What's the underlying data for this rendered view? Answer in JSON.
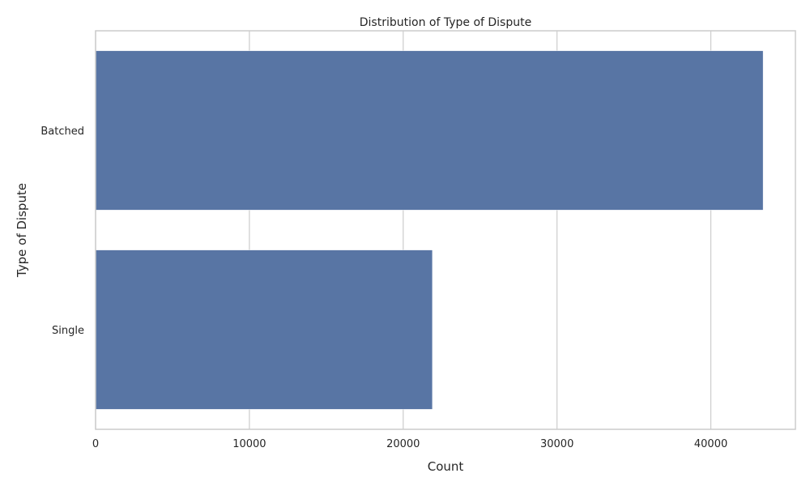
{
  "chart_data": {
    "type": "bar",
    "orientation": "horizontal",
    "title": "Distribution of Type of Dispute",
    "xlabel": "Count",
    "ylabel": "Type of Dispute",
    "categories": [
      "Batched",
      "Single"
    ],
    "values": [
      43400,
      21900
    ],
    "xlim": [
      0,
      45500
    ],
    "xticks": [
      0,
      10000,
      20000,
      30000,
      40000
    ],
    "grid": true,
    "bar_color": "#5875a4"
  }
}
